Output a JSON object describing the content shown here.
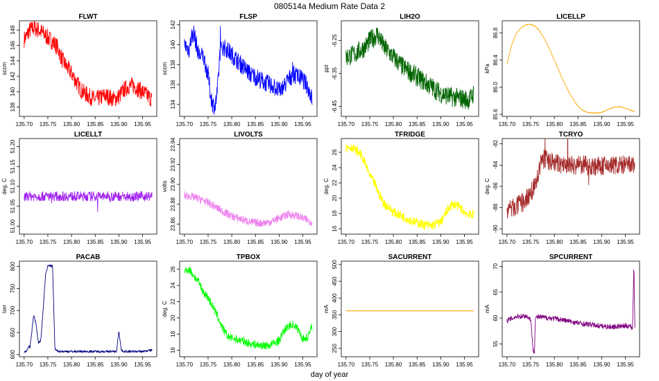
{
  "figure": {
    "title": "080514a   Medium Rate Data 2",
    "xlabel": "day of year"
  },
  "chart_data": [
    {
      "type": "line",
      "title": "FLWT",
      "ylabel": "sccm",
      "color": "#ff0000",
      "xlim": [
        135.69,
        135.98
      ],
      "xticks": [
        "135.70",
        "135.75",
        "135.80",
        "135.85",
        "135.90",
        "135.95"
      ],
      "ylim": [
        136.8,
        149.2
      ],
      "yticks": [
        "138",
        "140",
        "142",
        "144",
        "146",
        "148"
      ],
      "band": 1.1,
      "spikes": 0,
      "x": [
        135.7,
        135.705,
        135.71,
        135.72,
        135.73,
        135.74,
        135.75,
        135.76,
        135.77,
        135.78,
        135.79,
        135.8,
        135.81,
        135.82,
        135.83,
        135.84,
        135.85,
        135.86,
        135.87,
        135.88,
        135.89,
        135.9,
        135.91,
        135.92,
        135.93,
        135.94,
        135.95,
        135.96,
        135.97
      ],
      "y": [
        146.8,
        147.2,
        147.9,
        148.3,
        148.0,
        147.6,
        147.0,
        146.5,
        145.8,
        144.2,
        143.2,
        142.4,
        141.3,
        140.2,
        139.7,
        139.3,
        139.0,
        139.2,
        139.5,
        139.3,
        139.0,
        139.4,
        140.2,
        140.7,
        140.8,
        140.4,
        140.0,
        139.5,
        139.0
      ]
    },
    {
      "type": "line",
      "title": "FLSP",
      "ylabel": "sccm",
      "color": "#0000ff",
      "xlim": [
        135.69,
        135.98
      ],
      "xticks": [
        "135.70",
        "135.75",
        "135.80",
        "135.85",
        "135.90",
        "135.95"
      ],
      "ylim": [
        132.8,
        142.4
      ],
      "yticks": [
        "134",
        "136",
        "138",
        "140",
        "142"
      ],
      "band": 0.9,
      "spikes": 3,
      "x": [
        135.7,
        135.71,
        135.715,
        135.72,
        135.73,
        135.74,
        135.75,
        135.755,
        135.76,
        135.765,
        135.77,
        135.775,
        135.78,
        135.79,
        135.8,
        135.81,
        135.82,
        135.83,
        135.84,
        135.85,
        135.86,
        135.87,
        135.88,
        135.89,
        135.9,
        135.91,
        135.92,
        135.93,
        135.94,
        135.95,
        135.96,
        135.97
      ],
      "y": [
        140.0,
        139.5,
        140.8,
        141.2,
        139.0,
        138.8,
        137.0,
        135.0,
        134.0,
        133.8,
        135.5,
        139.2,
        139.8,
        139.5,
        139.0,
        138.5,
        138.0,
        137.5,
        137.0,
        136.8,
        136.5,
        136.2,
        136.0,
        135.8,
        135.3,
        135.8,
        136.5,
        137.0,
        136.8,
        136.5,
        135.8,
        134.5
      ]
    },
    {
      "type": "line",
      "title": "LIH2O",
      "ylabel": "ppt",
      "color": "#006400",
      "xlim": [
        135.69,
        135.98
      ],
      "xticks": [
        "135.70",
        "135.75",
        "135.80",
        "135.85",
        "135.90",
        "135.95"
      ],
      "ylim": [
        -6.48,
        -6.19
      ],
      "yticks": [
        "-6.45",
        "-6.35",
        "-6.25"
      ],
      "band": 0.03,
      "spikes": 0,
      "x": [
        135.7,
        135.72,
        135.74,
        135.75,
        135.76,
        135.765,
        135.77,
        135.78,
        135.8,
        135.82,
        135.84,
        135.86,
        135.88,
        135.9,
        135.92,
        135.94,
        135.96,
        135.97
      ],
      "y": [
        -6.3,
        -6.29,
        -6.27,
        -6.25,
        -6.24,
        -6.23,
        -6.24,
        -6.27,
        -6.3,
        -6.33,
        -6.35,
        -6.37,
        -6.39,
        -6.41,
        -6.42,
        -6.425,
        -6.43,
        -6.41
      ]
    },
    {
      "type": "line",
      "title": "LICELLP",
      "ylabel": "kPa",
      "color": "#ffa500",
      "xlim": [
        135.69,
        135.98
      ],
      "xticks": [
        "135.70",
        "135.75",
        "135.80",
        "135.85",
        "135.90",
        "135.95"
      ],
      "ylim": [
        85.57,
        86.98
      ],
      "yticks": [
        "85.6",
        "86.0",
        "86.4",
        "86.8"
      ],
      "band": 0.006,
      "spikes": 0,
      "x": [
        135.7,
        135.71,
        135.72,
        135.73,
        135.74,
        135.75,
        135.76,
        135.77,
        135.78,
        135.79,
        135.8,
        135.81,
        135.82,
        135.83,
        135.84,
        135.85,
        135.86,
        135.87,
        135.88,
        135.89,
        135.9,
        135.91,
        135.92,
        135.93,
        135.94,
        135.95,
        135.96,
        135.97
      ],
      "y": [
        86.35,
        86.62,
        86.8,
        86.88,
        86.92,
        86.93,
        86.9,
        86.82,
        86.7,
        86.56,
        86.4,
        86.24,
        86.08,
        85.94,
        85.82,
        85.72,
        85.66,
        85.63,
        85.62,
        85.62,
        85.63,
        85.66,
        85.69,
        85.71,
        85.71,
        85.69,
        85.66,
        85.64
      ]
    },
    {
      "type": "line",
      "title": "LICELLT",
      "ylabel": "deg. C",
      "color": "#a020f0",
      "xlim": [
        135.69,
        135.98
      ],
      "xticks": [
        "135.70",
        "135.75",
        "135.80",
        "135.85",
        "135.90",
        "135.95"
      ],
      "ylim": [
        50.98,
        51.22
      ],
      "yticks": [
        "51.00",
        "51.05",
        "51.10",
        "51.15",
        "51.20"
      ],
      "band": 0.012,
      "spikes": -12,
      "x": [
        135.7,
        135.97
      ],
      "y": [
        51.075,
        51.075
      ]
    },
    {
      "type": "line",
      "title": "LIVOLTS",
      "ylabel": "volts",
      "color": "#ee82ee",
      "xlim": [
        135.69,
        135.98
      ],
      "xticks": [
        "135.70",
        "135.75",
        "135.80",
        "135.85",
        "135.90",
        "135.95"
      ],
      "ylim": [
        23.85,
        23.946
      ],
      "yticks": [
        "23.86",
        "23.88",
        "23.90",
        "23.92",
        "23.94"
      ],
      "band": 0.004,
      "spikes": 0,
      "x": [
        135.7,
        135.72,
        135.74,
        135.76,
        135.78,
        135.8,
        135.82,
        135.84,
        135.86,
        135.88,
        135.9,
        135.92,
        135.94,
        135.96,
        135.97
      ],
      "y": [
        23.889,
        23.887,
        23.884,
        23.879,
        23.873,
        23.868,
        23.865,
        23.862,
        23.861,
        23.862,
        23.866,
        23.87,
        23.868,
        23.864,
        23.862
      ]
    },
    {
      "type": "line",
      "title": "TFRIDGE",
      "ylabel": "deg. C",
      "color": "#ffff00",
      "xlim": [
        135.69,
        135.98
      ],
      "xticks": [
        "135.70",
        "135.75",
        "135.80",
        "135.85",
        "135.90",
        "135.95"
      ],
      "ylim": [
        15.3,
        27.8
      ],
      "yticks": [
        "16",
        "18",
        "20",
        "22",
        "24",
        "26"
      ],
      "band": 0.6,
      "spikes": 0,
      "x": [
        135.7,
        135.71,
        135.72,
        135.73,
        135.74,
        135.75,
        135.76,
        135.77,
        135.78,
        135.79,
        135.8,
        135.82,
        135.84,
        135.86,
        135.88,
        135.9,
        135.91,
        135.92,
        135.93,
        135.94,
        135.95,
        135.96,
        135.97
      ],
      "y": [
        26.6,
        26.7,
        26.3,
        25.8,
        24.6,
        23.0,
        22.0,
        20.5,
        19.3,
        18.8,
        18.2,
        17.6,
        17.0,
        16.6,
        16.4,
        16.9,
        18.0,
        19.0,
        19.2,
        18.8,
        18.2,
        17.8,
        17.9
      ]
    },
    {
      "type": "line",
      "title": "TCRYO",
      "ylabel": "deg. C",
      "color": "#a52a2a",
      "xlim": [
        135.69,
        135.98
      ],
      "xticks": [
        "135.70",
        "135.75",
        "135.80",
        "135.85",
        "135.90",
        "135.95"
      ],
      "ylim": [
        -90.5,
        -81.5
      ],
      "yticks": [
        "-90",
        "-88",
        "-86",
        "-84",
        "-82"
      ],
      "band": 0.9,
      "spikes": 10,
      "x": [
        135.7,
        135.72,
        135.74,
        135.75,
        135.76,
        135.765,
        135.77,
        135.775,
        135.78,
        135.8,
        135.82,
        135.84,
        135.86,
        135.88,
        135.9,
        135.92,
        135.94,
        135.96,
        135.97
      ],
      "y": [
        -88.2,
        -87.9,
        -87.3,
        -86.6,
        -85.8,
        -85.2,
        -84.0,
        -83.5,
        -83.4,
        -83.8,
        -84.0,
        -84.0,
        -84.0,
        -84.1,
        -84.1,
        -84.0,
        -84.0,
        -84.0,
        -84.0
      ]
    },
    {
      "type": "line",
      "title": "PACAB",
      "ylabel": "torr",
      "color": "#000080",
      "xlim": [
        135.69,
        135.98
      ],
      "xticks": [
        "135.70",
        "135.75",
        "135.80",
        "135.85",
        "135.90",
        "135.95"
      ],
      "ylim": [
        595,
        812
      ],
      "yticks": [
        "600",
        "650",
        "700",
        "750",
        "800"
      ],
      "band": 2.5,
      "spikes": 0,
      "x": [
        135.7,
        135.705,
        135.71,
        135.712,
        135.715,
        135.72,
        135.725,
        135.73,
        135.735,
        135.74,
        135.745,
        135.75,
        135.755,
        135.76,
        135.765,
        135.77,
        135.78,
        135.8,
        135.85,
        135.895,
        135.9,
        135.905,
        135.91,
        135.95,
        135.97
      ],
      "y": [
        606,
        607,
        620,
        614,
        640,
        690,
        670,
        625,
        632,
        700,
        780,
        801,
        802,
        800,
        612,
        608,
        607,
        607,
        607,
        607,
        655,
        610,
        607,
        607,
        610
      ]
    },
    {
      "type": "line",
      "title": "TPBOX",
      "ylabel": "deg. C",
      "color": "#00ff00",
      "xlim": [
        135.69,
        135.98
      ],
      "xticks": [
        "135.70",
        "135.75",
        "135.80",
        "135.85",
        "135.90",
        "135.95"
      ],
      "ylim": [
        15.2,
        27.0
      ],
      "yticks": [
        "16",
        "18",
        "20",
        "22",
        "24",
        "26"
      ],
      "band": 0.5,
      "spikes": 0,
      "x": [
        135.7,
        135.71,
        135.72,
        135.73,
        135.74,
        135.75,
        135.76,
        135.77,
        135.78,
        135.79,
        135.8,
        135.82,
        135.84,
        135.86,
        135.88,
        135.9,
        135.91,
        135.92,
        135.93,
        135.94,
        135.95,
        135.96,
        135.97
      ],
      "y": [
        25.8,
        26.0,
        25.2,
        24.4,
        23.2,
        22.5,
        21.4,
        20.2,
        18.8,
        17.8,
        17.5,
        17.2,
        16.8,
        16.6,
        16.6,
        17.2,
        18.4,
        19.0,
        19.2,
        18.6,
        17.4,
        17.6,
        19.0
      ]
    },
    {
      "type": "line",
      "title": "SACURRENT",
      "ylabel": "mA",
      "color": "#ffa500",
      "xlim": [
        135.69,
        135.98
      ],
      "xticks": [
        "135.70",
        "135.75",
        "135.80",
        "135.85",
        "135.90",
        "135.95"
      ],
      "ylim": [
        225,
        510
      ],
      "yticks": [
        "250",
        "300",
        "350",
        "400",
        "450",
        "500"
      ],
      "band": 0,
      "spikes": 0,
      "x": [
        135.7,
        135.97
      ],
      "y": [
        362,
        362
      ]
    },
    {
      "type": "line",
      "title": "SPCURRENT",
      "ylabel": "mA",
      "color": "#800080",
      "xlim": [
        135.69,
        135.98
      ],
      "xticks": [
        "135.70",
        "135.75",
        "135.80",
        "135.85",
        "135.90",
        "135.95"
      ],
      "ylim": [
        52.5,
        71.0
      ],
      "yticks": [
        "55",
        "60",
        "65",
        "70"
      ],
      "band": 0.5,
      "spikes": 0,
      "x": [
        135.7,
        135.72,
        135.74,
        135.75,
        135.755,
        135.758,
        135.76,
        135.765,
        135.78,
        135.8,
        135.82,
        135.84,
        135.86,
        135.88,
        135.9,
        135.92,
        135.94,
        135.96,
        135.965,
        135.968,
        135.97
      ],
      "y": [
        59.5,
        60.3,
        60.4,
        59.8,
        54.0,
        53.5,
        60.0,
        60.2,
        60.1,
        59.9,
        59.6,
        59.2,
        58.9,
        58.7,
        58.4,
        58.3,
        58.4,
        58.5,
        58.0,
        70.5,
        58.5
      ]
    }
  ]
}
